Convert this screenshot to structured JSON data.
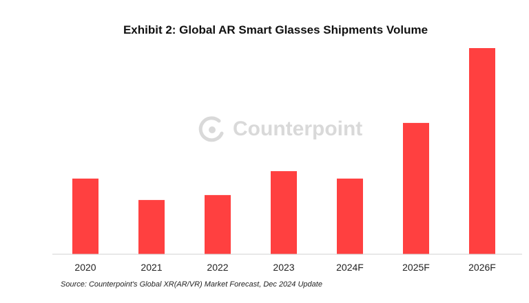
{
  "watermark": "Counterpoint",
  "chart_data": {
    "type": "bar",
    "title": "Exhibit 2: Global AR Smart Glasses Shipments Volume",
    "categories": [
      "2020",
      "2021",
      "2022",
      "2023",
      "2024F",
      "2025F",
      "2026F"
    ],
    "values": [
      36.7,
      26.3,
      28.7,
      40.3,
      36.7,
      63.7,
      100
    ],
    "value_note": "relative bar heights (2026F = 100); no value axis printed",
    "ylim": [
      0,
      100
    ],
    "xlabel": "",
    "ylabel": "",
    "grid": false,
    "bar_color": "#ff4040",
    "source": "Source: Counterpoint's Global XR(AR/VR) Market Forecast, Dec 2024 Update"
  }
}
